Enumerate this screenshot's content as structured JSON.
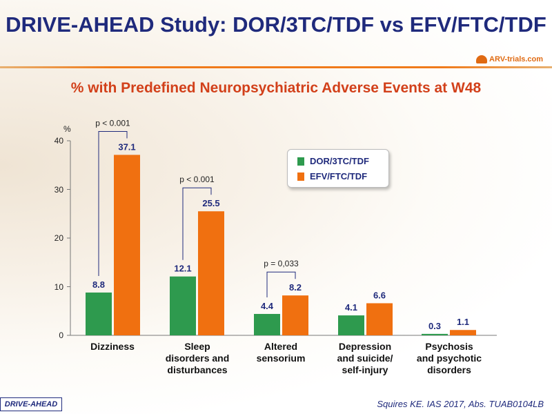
{
  "title": "DRIVE-AHEAD Study: DOR/3TC/TDF vs EFV/FTC/TDF",
  "logo_text": "ARV-trials.com",
  "badge": "DRIVE-AHEAD",
  "citation": "Squires KE. IAS  2017, Abs. TUAB0104LB",
  "chart_data": {
    "type": "bar",
    "title": "% with Predefined Neuropsychiatric Adverse Events at W48",
    "ylabel": "%",
    "ylim": [
      0,
      40
    ],
    "yticks": [
      "0",
      "10",
      "20",
      "30",
      "40"
    ],
    "categories": [
      "Dizziness",
      "Sleep disorders and disturbances",
      "Altered sensorium",
      "Depression and suicide/ self-injury",
      "Psychosis and psychotic disorders"
    ],
    "category_lines": [
      [
        "Dizziness"
      ],
      [
        "Sleep",
        "disorders and",
        "disturbances"
      ],
      [
        "Altered",
        "sensorium"
      ],
      [
        "Depression",
        "and suicide/",
        "self-injury"
      ],
      [
        "Psychosis",
        "and psychotic",
        "disorders"
      ]
    ],
    "series": [
      {
        "name": "DOR/3TC/TDF",
        "color": "#2e9a4e",
        "values": [
          8.8,
          12.1,
          4.4,
          4.1,
          0.3
        ],
        "labels": [
          "8.8",
          "12.1",
          "4.4",
          "4.1",
          "0.3"
        ]
      },
      {
        "name": "EFV/FTC/TDF",
        "color": "#f07010",
        "values": [
          37.1,
          25.5,
          8.2,
          6.6,
          1.1
        ],
        "labels": [
          "37.1",
          "25.5",
          "8.2",
          "6.6",
          "1.1"
        ]
      }
    ],
    "annotations": [
      {
        "category_index": 0,
        "text": "p < 0.001"
      },
      {
        "category_index": 1,
        "text": "p < 0.001"
      },
      {
        "category_index": 2,
        "text": "p = 0,033"
      }
    ],
    "legend_position": "inside-center"
  }
}
